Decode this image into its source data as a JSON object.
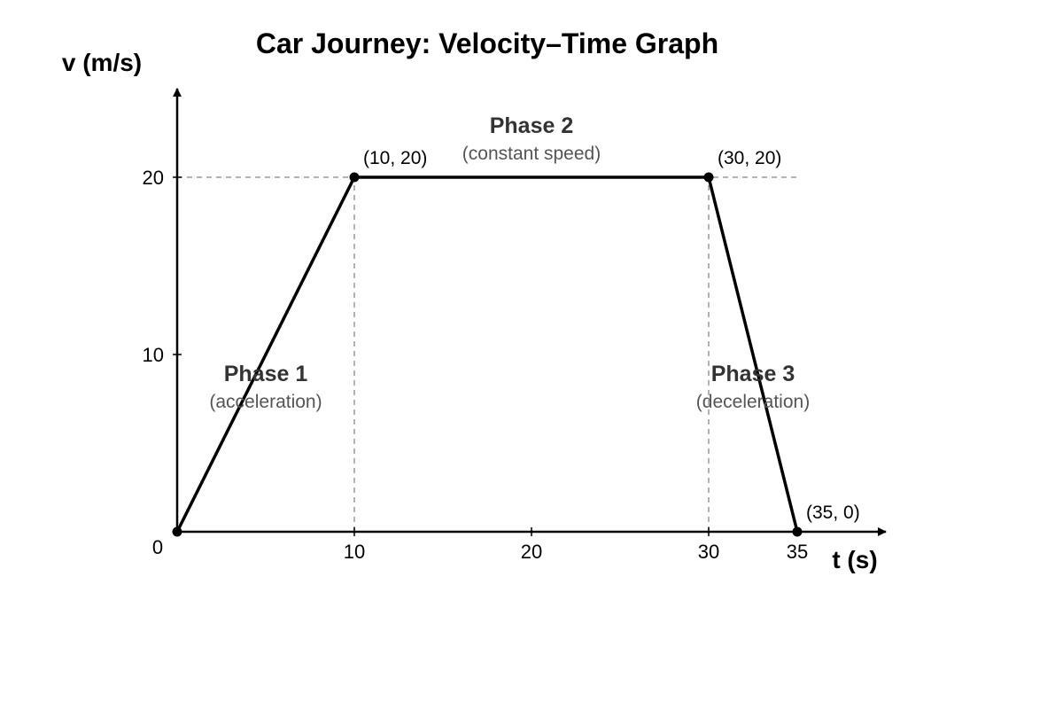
{
  "chart_data": {
    "type": "line",
    "title": "Car Journey: Velocity–Time Graph",
    "xlabel": "t (s)",
    "ylabel": "v (m/s)",
    "xlim": [
      0,
      40
    ],
    "ylim": [
      0,
      25
    ],
    "x_ticks": [
      {
        "value": 0,
        "label": "0"
      },
      {
        "value": 10,
        "label": "10"
      },
      {
        "value": 20,
        "label": "20"
      },
      {
        "value": 30,
        "label": "30"
      },
      {
        "value": 35,
        "label": "35"
      }
    ],
    "y_ticks": [
      {
        "value": 10,
        "label": "10"
      },
      {
        "value": 20,
        "label": "20"
      }
    ],
    "series": [
      {
        "points": [
          {
            "x": 0,
            "y": 0
          },
          {
            "x": 10,
            "y": 20
          },
          {
            "x": 30,
            "y": 20
          },
          {
            "x": 35,
            "y": 0
          }
        ],
        "color": "#000000"
      }
    ],
    "point_labels": [
      {
        "x": 10,
        "y": 20,
        "text": "(10, 20)"
      },
      {
        "x": 30,
        "y": 20,
        "text": "(30, 20)"
      },
      {
        "x": 35,
        "y": 0,
        "text": "(35, 0)"
      }
    ],
    "annotations": [
      {
        "x": 5,
        "y": 8.5,
        "name": "Phase 1",
        "description": "(acceleration)"
      },
      {
        "x": 20,
        "y": 22.5,
        "name": "Phase 2",
        "description": "(constant speed)"
      },
      {
        "x": 32.5,
        "y": 8.5,
        "name": "Phase 3",
        "description": "(deceleration)"
      }
    ],
    "reference_lines": {
      "horizontal": [
        20
      ],
      "vertical": [
        10,
        30
      ],
      "color": "#999999",
      "style": "dashed"
    },
    "grid": false,
    "legend": false
  }
}
